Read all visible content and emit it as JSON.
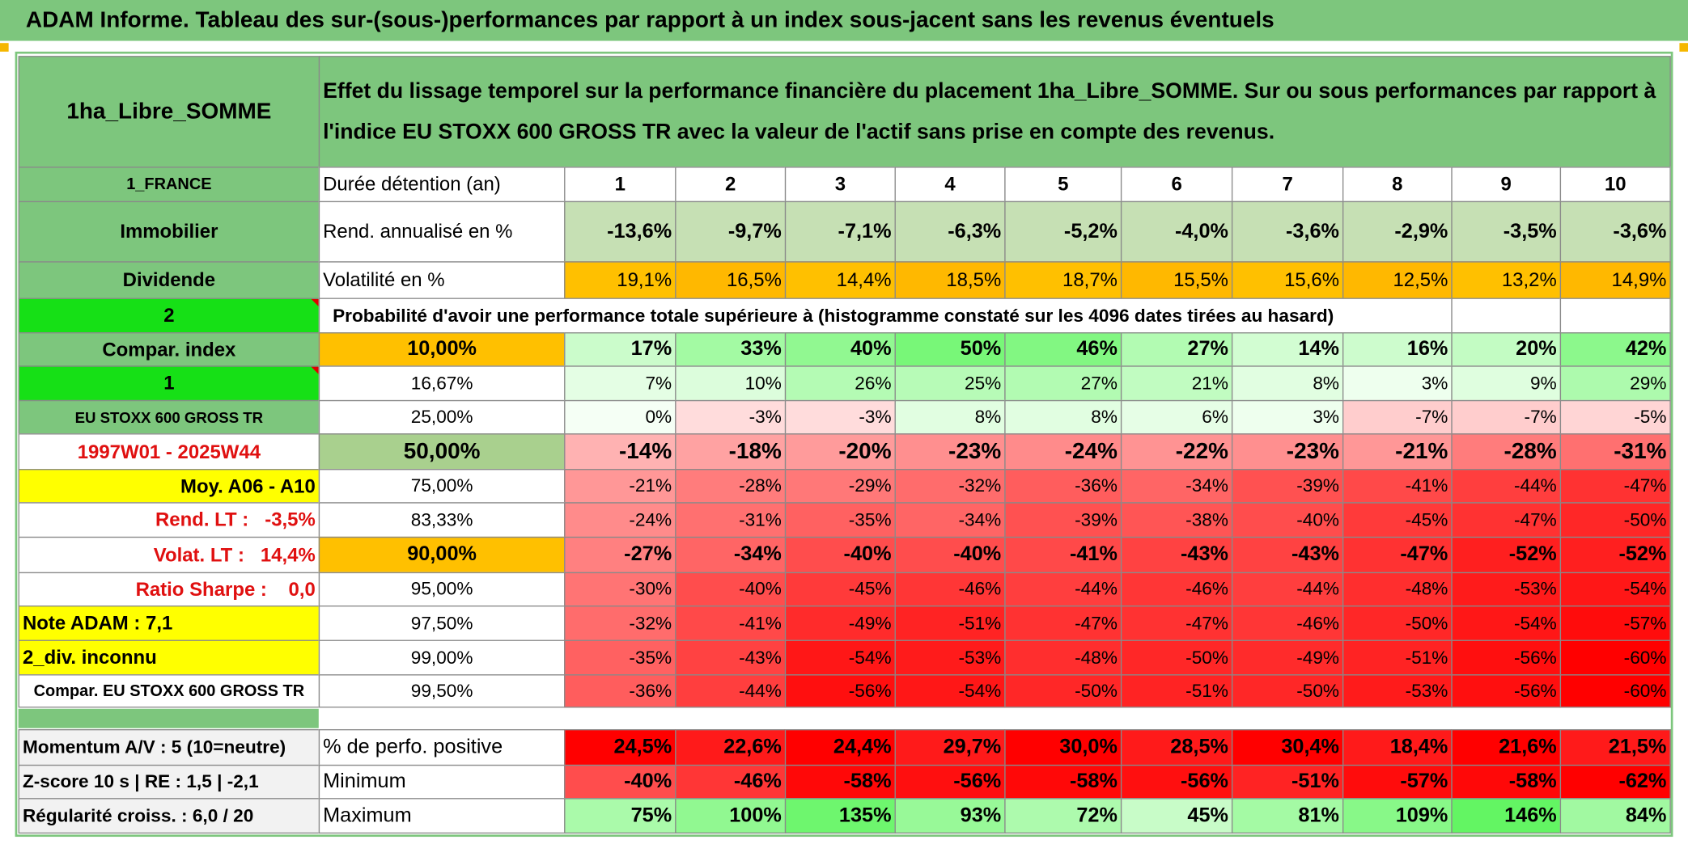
{
  "title": "ADAM Informe. Tableau des sur-(sous-)performances par rapport à un index sous-jacent sans les revenus éventuels",
  "header": {
    "name": "1ha_Libre_SOMME",
    "description": "Effet du lissage temporel sur la performance financière du placement 1ha_Libre_SOMME. Sur ou sous performances par rapport à l'indice EU STOXX 600 GROSS TR avec la valeur de l'actif sans prise en compte des revenus."
  },
  "summary_rows": [
    {
      "label": "1_FRANCE",
      "key": "Durée détention (an)",
      "cells": [
        "1",
        "2",
        "3",
        "4",
        "5",
        "6",
        "7",
        "8",
        "9",
        "10"
      ]
    },
    {
      "label": "Immobilier",
      "key": "Rend. annualisé en %",
      "cells": [
        "-13,6%",
        "-9,7%",
        "-7,1%",
        "-6,3%",
        "-5,2%",
        "-4,0%",
        "-3,6%",
        "-2,9%",
        "-3,5%",
        "-3,6%"
      ]
    },
    {
      "label": "Dividende",
      "key": "Volatilité en %",
      "cells": [
        "19,1%",
        "16,5%",
        "14,4%",
        "18,5%",
        "18,7%",
        "15,5%",
        "15,6%",
        "12,5%",
        "13,2%",
        "14,9%"
      ]
    }
  ],
  "probability": {
    "label": "2",
    "text": "Probabilité d'avoir une performance totale supérieure à (histogramme constaté sur les 4096 dates tirées au hasard)"
  },
  "percentile_rows": [
    {
      "label": "Compar. index",
      "key": "10,00%",
      "cells": [
        "17%",
        "33%",
        "40%",
        "50%",
        "46%",
        "27%",
        "14%",
        "16%",
        "20%",
        "42%"
      ]
    },
    {
      "label": "1",
      "key": "16,67%",
      "cells": [
        "7%",
        "10%",
        "26%",
        "25%",
        "27%",
        "21%",
        "8%",
        "3%",
        "9%",
        "29%"
      ]
    },
    {
      "label": "EU STOXX 600 GROSS TR",
      "key": "25,00%",
      "cells": [
        "0%",
        "-3%",
        "-3%",
        "8%",
        "8%",
        "6%",
        "3%",
        "-7%",
        "-7%",
        "-5%"
      ]
    },
    {
      "label": "1997W01 - 2025W44",
      "key": "50,00%",
      "cells": [
        "-14%",
        "-18%",
        "-20%",
        "-23%",
        "-24%",
        "-22%",
        "-23%",
        "-21%",
        "-28%",
        "-31%"
      ]
    },
    {
      "label": "Moy. A06 - A10",
      "key": "75,00%",
      "cells": [
        "-21%",
        "-28%",
        "-29%",
        "-32%",
        "-36%",
        "-34%",
        "-39%",
        "-41%",
        "-44%",
        "-47%"
      ]
    },
    {
      "label": "Rend. LT :   -3,5%",
      "key": "83,33%",
      "cells": [
        "-24%",
        "-31%",
        "-35%",
        "-34%",
        "-39%",
        "-38%",
        "-40%",
        "-45%",
        "-47%",
        "-50%"
      ]
    },
    {
      "label": "Volat. LT :   14,4%",
      "key": "90,00%",
      "cells": [
        "-27%",
        "-34%",
        "-40%",
        "-40%",
        "-41%",
        "-43%",
        "-43%",
        "-47%",
        "-52%",
        "-52%"
      ]
    },
    {
      "label": "Ratio Sharpe :    0,0",
      "key": "95,00%",
      "cells": [
        "-30%",
        "-40%",
        "-45%",
        "-46%",
        "-44%",
        "-46%",
        "-44%",
        "-48%",
        "-53%",
        "-54%"
      ]
    },
    {
      "label": "Note ADAM : 7,1",
      "key": "97,50%",
      "cells": [
        "-32%",
        "-41%",
        "-49%",
        "-51%",
        "-47%",
        "-47%",
        "-46%",
        "-50%",
        "-54%",
        "-57%"
      ]
    },
    {
      "label": "2_div. inconnu",
      "key": "99,00%",
      "cells": [
        "-35%",
        "-43%",
        "-54%",
        "-53%",
        "-48%",
        "-50%",
        "-49%",
        "-51%",
        "-56%",
        "-60%"
      ]
    },
    {
      "label": "Compar. EU STOXX 600 GROSS TR",
      "key": "99,50%",
      "cells": [
        "-36%",
        "-44%",
        "-56%",
        "-54%",
        "-50%",
        "-51%",
        "-50%",
        "-53%",
        "-56%",
        "-60%"
      ]
    }
  ],
  "stats_rows": [
    {
      "label": "Momentum A/V : 5 (10=neutre)",
      "key": "% de perfo. positive",
      "cells": [
        "24,5%",
        "22,6%",
        "24,4%",
        "29,7%",
        "30,0%",
        "28,5%",
        "30,4%",
        "18,4%",
        "21,6%",
        "21,5%"
      ]
    },
    {
      "label": "Z-score 10 s | RE : 1,5 | -2,1",
      "key": "Minimum",
      "cells": [
        "-40%",
        "-46%",
        "-58%",
        "-56%",
        "-58%",
        "-56%",
        "-51%",
        "-57%",
        "-58%",
        "-62%"
      ]
    },
    {
      "label": "Régularité croiss. : 6,0 / 20",
      "key": "Maximum",
      "cells": [
        "75%",
        "100%",
        "135%",
        "93%",
        "72%",
        "45%",
        "81%",
        "109%",
        "146%",
        "84%"
      ]
    }
  ]
}
